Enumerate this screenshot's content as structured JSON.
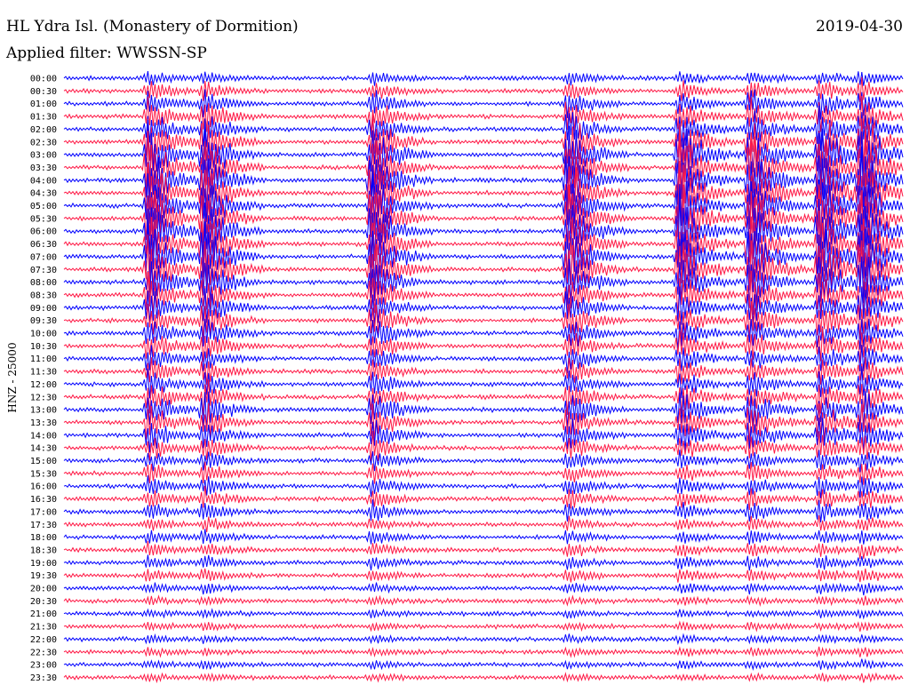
{
  "header": {
    "station": "HL Ydra Isl. (Monastery of Dormition)",
    "filter": "Applied filter: WWSSN-SP",
    "date": "2019-04-30"
  },
  "colors": {
    "trace_a": "#0000ff",
    "trace_b": "#ff1744",
    "background": "#ffffff",
    "text": "#000000"
  },
  "chart_data": {
    "type": "line",
    "title": "HL Ydra Isl. (Monastery of Dormition)",
    "subtitle": "Applied filter: WWSSN-SP",
    "date": "2019-04-30",
    "ylabel": "HNZ - 25000",
    "row_colors": [
      "#0000ff",
      "#ff1744"
    ],
    "rows": [
      "00:00",
      "00:30",
      "01:00",
      "01:30",
      "02:00",
      "02:30",
      "03:00",
      "03:30",
      "04:00",
      "04:30",
      "05:00",
      "05:30",
      "06:00",
      "06:30",
      "07:00",
      "07:30",
      "08:00",
      "08:30",
      "09:00",
      "09:30",
      "10:00",
      "10:30",
      "11:00",
      "11:30",
      "12:00",
      "12:30",
      "13:00",
      "13:30",
      "14:00",
      "14:30",
      "15:00",
      "15:30",
      "16:00",
      "16:30",
      "17:00",
      "17:30",
      "18:00",
      "18:30",
      "19:00",
      "19:30",
      "20:00",
      "20:30",
      "21:00",
      "21:30",
      "22:00",
      "22:30",
      "23:00",
      "23:30"
    ],
    "window_minutes": 30,
    "events_minute": [
      3,
      5,
      11,
      18,
      22,
      24.5,
      27,
      28.5
    ],
    "event_strength_by_row": [
      0.2,
      0.3,
      0.4,
      0.5,
      0.6,
      0.8,
      1,
      1,
      1,
      1,
      1,
      1,
      1,
      1,
      1,
      1,
      0.8,
      0.7,
      0.6,
      0.6,
      0.5,
      0.5,
      0.4,
      0.4,
      0.4,
      0.5,
      0.6,
      0.6,
      0.5,
      0.4,
      0.3,
      0.3,
      0.3,
      0.3,
      0.3,
      0.2,
      0.2,
      0.2,
      0.2,
      0.2,
      0.15,
      0.1,
      0.1,
      0.1,
      0.1,
      0.1,
      0.1,
      0.1
    ]
  }
}
